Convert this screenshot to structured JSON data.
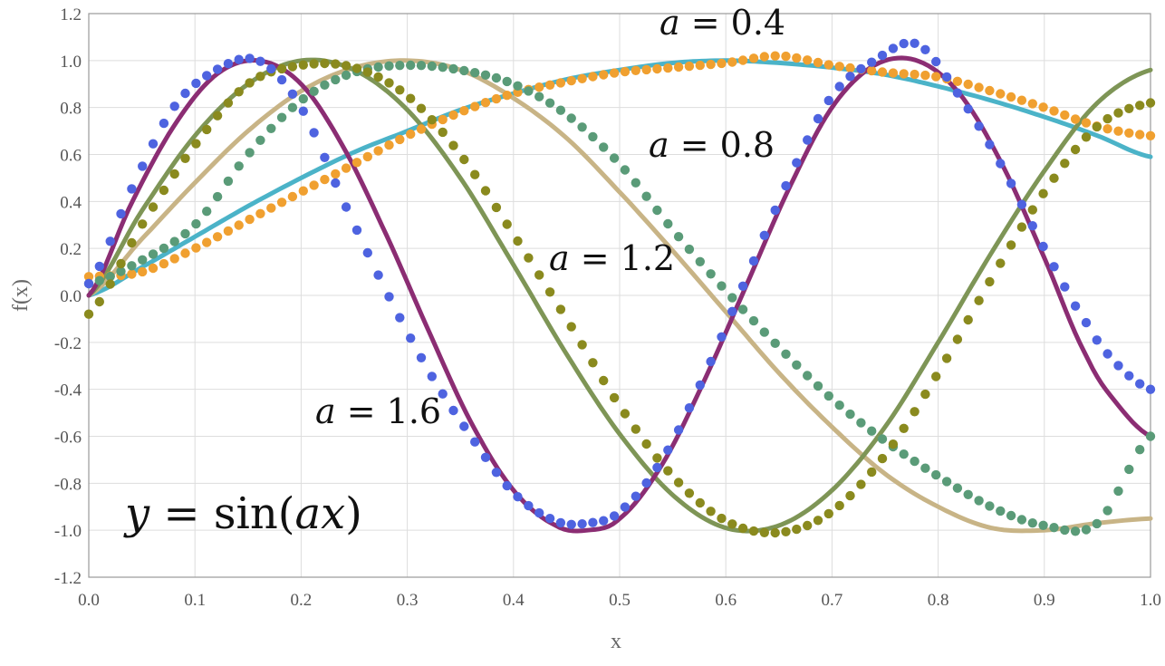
{
  "chart_data": {
    "type": "line",
    "title": "",
    "xlabel": "x",
    "ylabel": "f(x)",
    "xlim": [
      0,
      1
    ],
    "ylim": [
      -1.2,
      1.2
    ],
    "grid": true,
    "x_ticks": [
      "0.0",
      "0.1",
      "0.2",
      "0.3",
      "0.4",
      "0.5",
      "0.6",
      "0.7",
      "0.8",
      "0.9",
      "1.0"
    ],
    "y_ticks": [
      "1.2",
      "1.0",
      "0.8",
      "0.6",
      "0.4",
      "0.2",
      "0.0",
      "-0.2",
      "-0.4",
      "-0.6",
      "-0.8",
      "-1.0",
      "-1.2"
    ],
    "formula": {
      "lhs": "y",
      "eq": " = ",
      "fn": "sin(",
      "arg": "ax",
      "close": ")"
    },
    "labels": [
      {
        "var": "a",
        "text": " = 0.4"
      },
      {
        "var": "a",
        "text": " = 0.8"
      },
      {
        "var": "a",
        "text": " = 1.2"
      },
      {
        "var": "a",
        "text": " = 1.6"
      }
    ],
    "series": [
      {
        "a": 0.4,
        "line_color": "#4bb3c8",
        "dot_color": "#f0a030",
        "x": [
          0.0,
          0.05,
          0.1,
          0.15,
          0.2,
          0.25,
          0.3,
          0.35,
          0.4,
          0.45,
          0.5,
          0.55,
          0.6,
          0.65,
          0.7,
          0.75,
          0.8,
          0.85,
          0.9,
          0.95,
          1.0
        ],
        "line_y": [
          0.0,
          0.12,
          0.25,
          0.38,
          0.5,
          0.61,
          0.7,
          0.79,
          0.86,
          0.92,
          0.96,
          0.99,
          1.0,
          0.99,
          0.97,
          0.94,
          0.89,
          0.83,
          0.76,
          0.68,
          0.59
        ],
        "dots_y": [
          0.08,
          0.1,
          0.2,
          0.32,
          0.44,
          0.56,
          0.68,
          0.78,
          0.86,
          0.91,
          0.95,
          0.97,
          0.99,
          1.02,
          0.98,
          0.95,
          0.93,
          0.87,
          0.8,
          0.72,
          0.68
        ]
      },
      {
        "a": 0.8,
        "line_color": "#c8b486",
        "dot_color": "#5a9b78",
        "x": [
          0.0,
          0.05,
          0.1,
          0.15,
          0.2,
          0.25,
          0.3,
          0.35,
          0.4,
          0.45,
          0.5,
          0.55,
          0.6,
          0.65,
          0.7,
          0.75,
          0.8,
          0.85,
          0.9,
          0.95,
          1.0
        ],
        "line_y": [
          0.0,
          0.24,
          0.48,
          0.7,
          0.87,
          0.97,
          1.0,
          0.96,
          0.84,
          0.67,
          0.44,
          0.19,
          -0.07,
          -0.33,
          -0.56,
          -0.76,
          -0.9,
          -0.99,
          -1.0,
          -0.97,
          -0.95
        ],
        "dots_y": [
          0.05,
          0.15,
          0.3,
          0.6,
          0.83,
          0.95,
          0.98,
          0.96,
          0.9,
          0.77,
          0.56,
          0.28,
          0.02,
          -0.22,
          -0.44,
          -0.62,
          -0.77,
          -0.9,
          -0.98,
          -0.97,
          -0.6
        ]
      },
      {
        "a": 1.2,
        "line_color": "#7e9556",
        "dot_color": "#8a8a1e",
        "x": [
          0.0,
          0.05,
          0.1,
          0.15,
          0.2,
          0.25,
          0.3,
          0.35,
          0.4,
          0.45,
          0.5,
          0.55,
          0.6,
          0.65,
          0.7,
          0.75,
          0.8,
          0.85,
          0.9,
          0.95,
          1.0
        ],
        "line_y": [
          0.0,
          0.36,
          0.68,
          0.9,
          1.0,
          0.96,
          0.79,
          0.5,
          0.13,
          -0.25,
          -0.59,
          -0.85,
          -0.99,
          -0.98,
          -0.83,
          -0.56,
          -0.2,
          0.18,
          0.53,
          0.82,
          0.96
        ],
        "dots_y": [
          -0.08,
          0.3,
          0.64,
          0.9,
          0.98,
          0.97,
          0.85,
          0.6,
          0.26,
          -0.1,
          -0.47,
          -0.77,
          -0.96,
          -1.01,
          -0.92,
          -0.68,
          -0.33,
          0.07,
          0.44,
          0.72,
          0.82
        ]
      },
      {
        "a": 1.6,
        "line_color": "#8b2d73",
        "dot_color": "#4e63e0",
        "x": [
          0.0,
          0.04,
          0.08,
          0.12,
          0.16,
          0.2,
          0.24,
          0.28,
          0.32,
          0.36,
          0.4,
          0.44,
          0.47,
          0.5,
          0.54,
          0.58,
          0.62,
          0.66,
          0.7,
          0.74,
          0.78,
          0.82,
          0.86,
          0.9,
          0.94,
          0.97,
          1.0
        ],
        "line_y": [
          0.0,
          0.39,
          0.72,
          0.94,
          1.0,
          0.9,
          0.63,
          0.26,
          -0.15,
          -0.54,
          -0.83,
          -0.98,
          -1.0,
          -0.95,
          -0.72,
          -0.36,
          0.05,
          0.46,
          0.8,
          0.98,
          1.0,
          0.86,
          0.56,
          0.16,
          -0.26,
          -0.47,
          -0.6
        ],
        "dots_y": [
          0.05,
          0.45,
          0.8,
          0.96,
          1.0,
          0.8,
          0.4,
          0.02,
          -0.32,
          -0.6,
          -0.84,
          -0.96,
          -0.97,
          -0.92,
          -0.7,
          -0.34,
          0.08,
          0.5,
          0.85,
          1.0,
          1.07,
          0.85,
          0.55,
          0.2,
          -0.12,
          -0.3,
          -0.4
        ]
      }
    ]
  }
}
